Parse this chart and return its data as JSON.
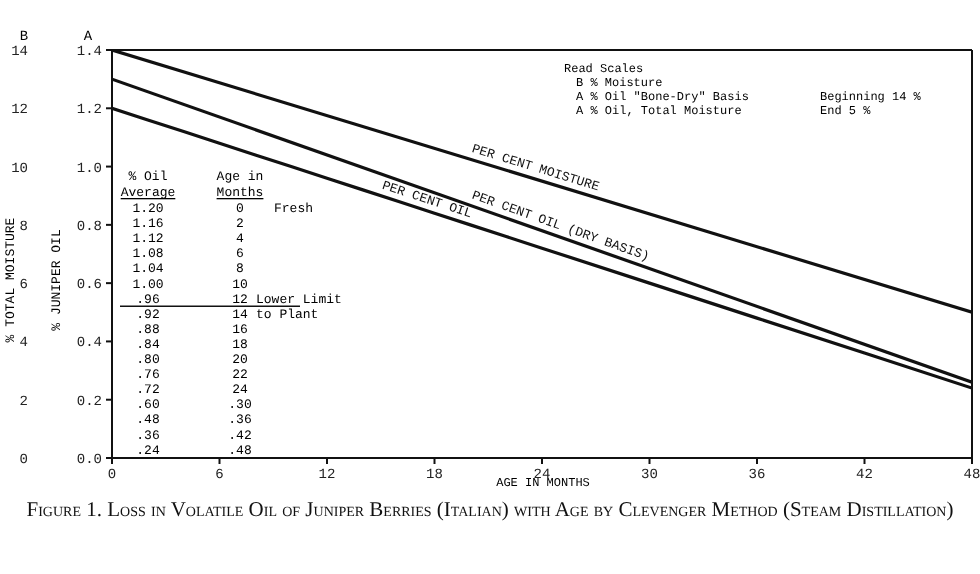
{
  "chart_data": {
    "type": "line",
    "title": "Figure 1. Loss in Volatile Oil of Juniper Berries (Italian) with Age by Clevenger Method (Steam Distillation)",
    "xlabel": "AGE IN MONTHS",
    "ylabel": "% JUNIPER OIL",
    "y2label": "% TOTAL MOISTURE",
    "xlim": [
      0,
      48
    ],
    "xticks": [
      0,
      6,
      12,
      18,
      24,
      30,
      36,
      42,
      48
    ],
    "ylim": [
      0,
      1.4
    ],
    "yticks": [
      {
        "value": 0,
        "label": "0.0"
      },
      0.2,
      0.4,
      0.6,
      0.8,
      {
        "value": 1,
        "label": "1.0"
      },
      1.2,
      1.4
    ],
    "y2lim": [
      0,
      14
    ],
    "y2ticks": [
      0,
      2,
      4,
      6,
      8,
      10,
      12,
      14
    ],
    "marker": "none",
    "line_style": "solid",
    "series": [
      {
        "name": "PER CENT MOISTURE",
        "color": "#111111",
        "axis": "y2",
        "x": [
          0,
          48
        ],
        "values": [
          14,
          5
        ]
      },
      {
        "name": "PER CENT OIL (DRY BASIS)",
        "color": "#111111",
        "x": [
          0,
          48
        ],
        "values": [
          1.3,
          0.26
        ]
      },
      {
        "name": "PER CENT OIL",
        "color": "#111111",
        "x": [
          0,
          2,
          4,
          6,
          8,
          10,
          12,
          14,
          16,
          18,
          20,
          22,
          24,
          30,
          36,
          42,
          48
        ],
        "values": [
          1.2,
          1.16,
          1.12,
          1.08,
          1.04,
          1.0,
          0.96,
          0.92,
          0.88,
          0.84,
          0.8,
          0.76,
          0.72,
          0.6,
          0.48,
          0.36,
          0.24
        ]
      }
    ],
    "annotations": [
      "% Oil Average",
      "Age in Months",
      "1.20",
      "1.16",
      "1.12",
      "1.08",
      "1.04",
      "1.00",
      ".96",
      ".92",
      ".88",
      ".84",
      ".80",
      ".76",
      ".72",
      ".60",
      ".48",
      ".36",
      ".24",
      "0",
      "2",
      "4",
      "6",
      "8",
      "10",
      "12",
      "14",
      "16",
      "18",
      "20",
      "22",
      "24",
      ".30",
      ".36",
      ".42",
      ".48",
      "Fresh",
      "Lower Limit to Plant",
      "Read Scales",
      "B % Moisture",
      "A % Oil \"Bone-Dry\" Basis",
      "A % Oil, Total Moisture",
      "Beginning 14 %",
      "End 5 %",
      "B",
      "A"
    ]
  }
}
